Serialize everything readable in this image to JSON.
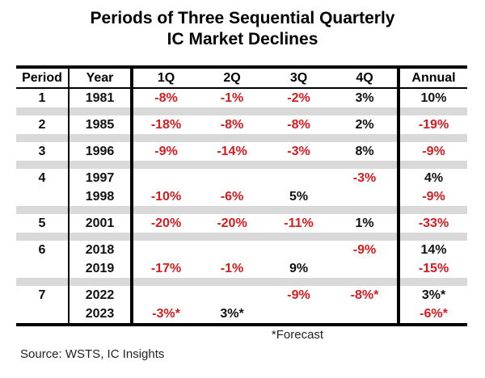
{
  "title": {
    "line1": "Periods of Three Sequential Quarterly",
    "line2": "IC Market Declines"
  },
  "chart_data": {
    "type": "table",
    "title": "Periods of Three Sequential Quarterly IC Market Declines",
    "columns": [
      "Period",
      "Year",
      "1Q",
      "2Q",
      "3Q",
      "4Q",
      "Annual"
    ],
    "rows": [
      [
        "1",
        "1981",
        "-8%",
        "-1%",
        "-2%",
        "3%",
        "10%"
      ],
      [
        "2",
        "1985",
        "-18%",
        "-8%",
        "-8%",
        "2%",
        "-19%"
      ],
      [
        "3",
        "1996",
        "-9%",
        "-14%",
        "-3%",
        "8%",
        "-9%"
      ],
      [
        "4",
        "1997",
        "",
        "",
        "",
        "-3%",
        "4%"
      ],
      [
        "",
        "1998",
        "-10%",
        "-6%",
        "5%",
        "",
        "-9%"
      ],
      [
        "5",
        "2001",
        "-20%",
        "-20%",
        "-11%",
        "1%",
        "-33%"
      ],
      [
        "6",
        "2018",
        "",
        "",
        "",
        "-9%",
        "14%"
      ],
      [
        "",
        "2019",
        "-17%",
        "-1%",
        "9%",
        "",
        "-15%"
      ],
      [
        "7",
        "2022",
        "",
        "",
        "-9%",
        "-8%*",
        "3%*"
      ],
      [
        "",
        "2023",
        "-3%*",
        "3%*",
        "",
        "",
        "-6%*"
      ]
    ],
    "footnote": "*Forecast",
    "source": "Source: WSTS, IC Insights",
    "layout": {
      "negative_values_red": true,
      "group_separator_bars": true,
      "grid": "partial"
    }
  },
  "colors": {
    "negative": "#d81b20",
    "positive": "#111111",
    "separator": "#d9d9d9",
    "rule": "#000000"
  }
}
